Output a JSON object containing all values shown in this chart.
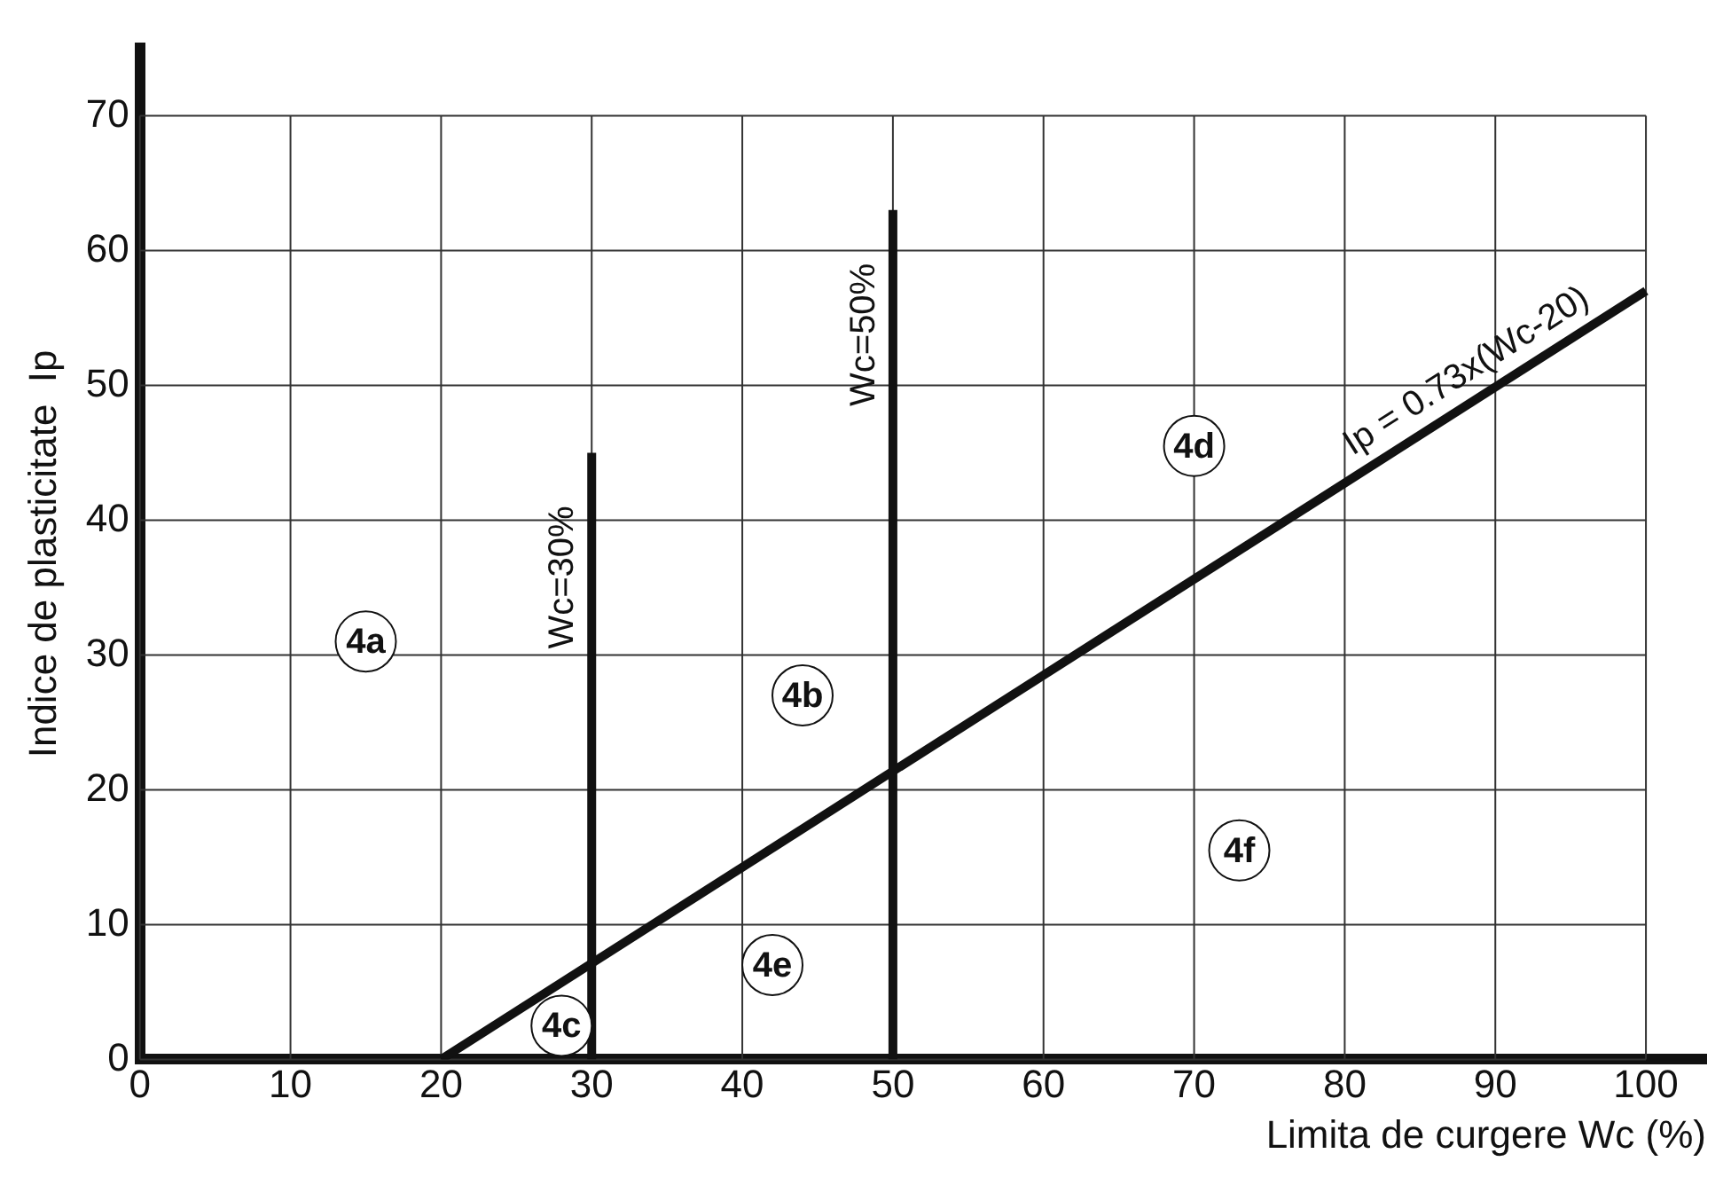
{
  "chart_data": {
    "type": "line",
    "xlabel": "Limita de curgere Wc (%)",
    "ylabel": "Indice de plasticitate  Ip",
    "xlim": [
      0,
      104
    ],
    "xticks": [
      0,
      10,
      20,
      30,
      40,
      50,
      60,
      70,
      80,
      90,
      100
    ],
    "ylim": [
      0,
      75
    ],
    "yticks": [
      0,
      10,
      20,
      30,
      40,
      50,
      60,
      70
    ],
    "grid": true,
    "legend": false,
    "marker": "none",
    "line_style": "solid",
    "series": [
      {
        "name": "Wc=30%",
        "color": "#111111",
        "x": [
          30,
          30
        ],
        "values": [
          0,
          45
        ]
      },
      {
        "name": "Wc=50%",
        "color": "#111111",
        "x": [
          50,
          50
        ],
        "values": [
          0,
          63
        ]
      },
      {
        "name": "Ip = 0.73x(Wc-20)",
        "color": "#111111",
        "x": [
          20,
          100
        ],
        "values": [
          0,
          57
        ]
      }
    ],
    "annotations": [
      {
        "text": "4a",
        "x": 15,
        "y": 31
      },
      {
        "text": "4b",
        "x": 44,
        "y": 27
      },
      {
        "text": "4c",
        "x": 28,
        "y": 2.5
      },
      {
        "text": "4d",
        "x": 70,
        "y": 45.5
      },
      {
        "text": "4e",
        "x": 42,
        "y": 7
      },
      {
        "text": "4f",
        "x": 73,
        "y": 15.5
      }
    ]
  }
}
